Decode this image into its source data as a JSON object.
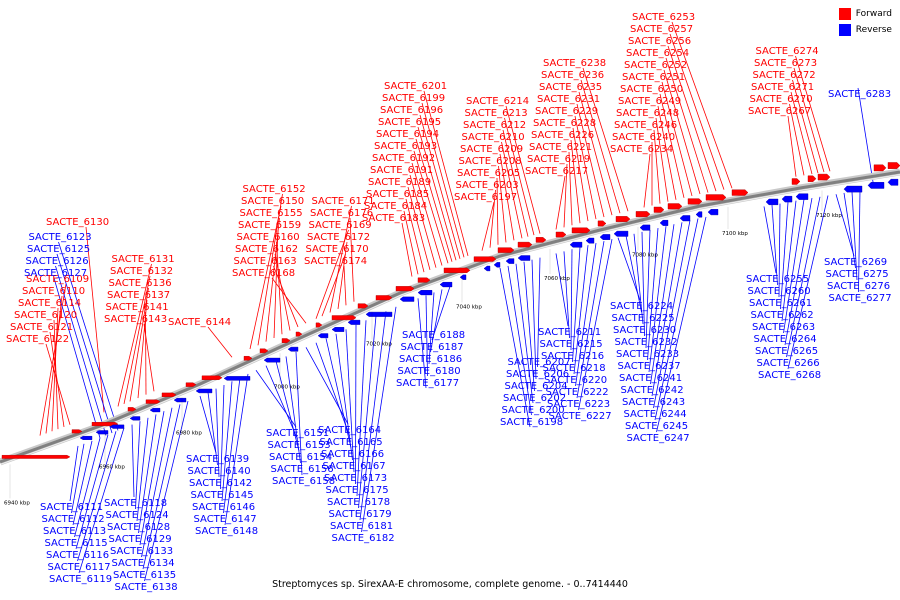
{
  "caption": "Streptomyces sp. SirexAA-E chromosome, complete genome. - 0..7414440",
  "legend": [
    {
      "label": "Forward",
      "color": "#ff0000"
    },
    {
      "label": "Reverse",
      "color": "#0000ff"
    }
  ],
  "colors": {
    "forward": "#ff0000",
    "reverse": "#0000ff",
    "axis": "#808080"
  },
  "ticks": [
    "6940 kbp",
    "6960 kbp",
    "6980 kbp",
    "7000 kbp",
    "7020 kbp",
    "7040 kbp",
    "7060 kbp",
    "7080 kbp",
    "7100 kbp",
    "7120 kbp"
  ],
  "forward_groups": [
    {
      "genes": [
        "SACTE_6109",
        "SACTE_6110",
        "SACTE_6114",
        "SACTE_6120",
        "SACTE_6121",
        "SACTE_6122"
      ]
    },
    {
      "genes": [
        "SACTE_6130"
      ]
    },
    {
      "genes": [
        "SACTE_6131",
        "SACTE_6132",
        "SACTE_6136",
        "SACTE_6137",
        "SACTE_6141",
        "SACTE_6143"
      ]
    },
    {
      "genes": [
        "SACTE_6144"
      ]
    },
    {
      "genes": [
        "SACTE_6150",
        "SACTE_6152",
        "SACTE_6155",
        "SACTE_6159",
        "SACTE_6160",
        "SACTE_6162",
        "SACTE_6163",
        "SACTE_6168"
      ]
    },
    {
      "genes": [
        "SACTE_6169",
        "SACTE_6170",
        "SACTE_6171",
        "SACTE_6172",
        "SACTE_6174",
        "SACTE_6176"
      ]
    },
    {
      "genes": [
        "SACTE_6183",
        "SACTE_6184",
        "SACTE_6185",
        "SACTE_6189",
        "SACTE_6191",
        "SACTE_6192",
        "SACTE_6193",
        "SACTE_6194",
        "SACTE_6195",
        "SACTE_6196",
        "SACTE_6199",
        "SACTE_6201"
      ]
    },
    {
      "genes": [
        "SACTE_6197",
        "SACTE_6203",
        "SACTE_6205",
        "SACTE_6208",
        "SACTE_6209",
        "SACTE_6210",
        "SACTE_6212",
        "SACTE_6213",
        "SACTE_6214"
      ]
    },
    {
      "genes": [
        "SACTE_6217",
        "SACTE_6219",
        "SACTE_6221",
        "SACTE_6226",
        "SACTE_6228",
        "SACTE_6229",
        "SACTE_6231",
        "SACTE_6235",
        "SACTE_6236",
        "SACTE_6238"
      ]
    },
    {
      "genes": [
        "SACTE_6234",
        "SACTE_6240",
        "SACTE_6246",
        "SACTE_6248",
        "SACTE_6249",
        "SACTE_6250",
        "SACTE_6251",
        "SACTE_6252",
        "SACTE_6254",
        "SACTE_6256",
        "SACTE_6257",
        "SACTE_6253"
      ]
    },
    {
      "genes": [
        "SACTE_6267",
        "SACTE_6270",
        "SACTE_6271",
        "SACTE_6272",
        "SACTE_6273",
        "SACTE_6274"
      ]
    }
  ],
  "reverse_groups": [
    {
      "genes": [
        "SACTE_6123",
        "SACTE_6125",
        "SACTE_6126",
        "SACTE_6127"
      ]
    },
    {
      "genes": [
        "SACTE_6283"
      ]
    },
    {
      "genes": [
        "SACTE_6111",
        "SACTE_6112",
        "SACTE_6113",
        "SACTE_6115",
        "SACTE_6116",
        "SACTE_6117",
        "SACTE_6119"
      ]
    },
    {
      "genes": [
        "SACTE_6118",
        "SACTE_6124",
        "SACTE_6128",
        "SACTE_6129",
        "SACTE_6133",
        "SACTE_6134",
        "SACTE_6135",
        "SACTE_6138"
      ]
    },
    {
      "genes": [
        "SACTE_6139",
        "SACTE_6140",
        "SACTE_6142",
        "SACTE_6145",
        "SACTE_6146",
        "SACTE_6147",
        "SACTE_6148"
      ]
    },
    {
      "genes": [
        "SACTE_6151",
        "SACTE_6153",
        "SACTE_6154",
        "SACTE_6156",
        "SACTE_6158"
      ]
    },
    {
      "genes": [
        "SACTE_6164",
        "SACTE_6165",
        "SACTE_6166",
        "SACTE_6167",
        "SACTE_6173",
        "SACTE_6175",
        "SACTE_6178",
        "SACTE_6179",
        "SACTE_6181",
        "SACTE_6182"
      ]
    },
    {
      "genes": [
        "SACTE_6177",
        "SACTE_6180",
        "SACTE_6186",
        "SACTE_6187",
        "SACTE_6188"
      ]
    },
    {
      "genes": [
        "SACTE_6198",
        "SACTE_6200",
        "SACTE_6202",
        "SACTE_6204",
        "SACTE_6206",
        "SACTE_6207"
      ]
    },
    {
      "genes": [
        "SACTE_6211",
        "SACTE_6215",
        "SACTE_6216",
        "SACTE_6218",
        "SACTE_6220",
        "SACTE_6222",
        "SACTE_6223",
        "SACTE_6227"
      ]
    },
    {
      "genes": [
        "SACTE_6224",
        "SACTE_6225",
        "SACTE_6230",
        "SACTE_6232",
        "SACTE_6233",
        "SACTE_6237",
        "SACTE_6241",
        "SACTE_6242",
        "SACTE_6243",
        "SACTE_6244",
        "SACTE_6245",
        "SACTE_6247"
      ]
    },
    {
      "genes": [
        "SACTE_6255",
        "SACTE_6260",
        "SACTE_6261",
        "SACTE_6262",
        "SACTE_6263",
        "SACTE_6264",
        "SACTE_6265",
        "SACTE_6266",
        "SACTE_6268"
      ]
    },
    {
      "genes": [
        "SACTE_6269",
        "SACTE_6275",
        "SACTE_6276",
        "SACTE_6277"
      ]
    }
  ]
}
